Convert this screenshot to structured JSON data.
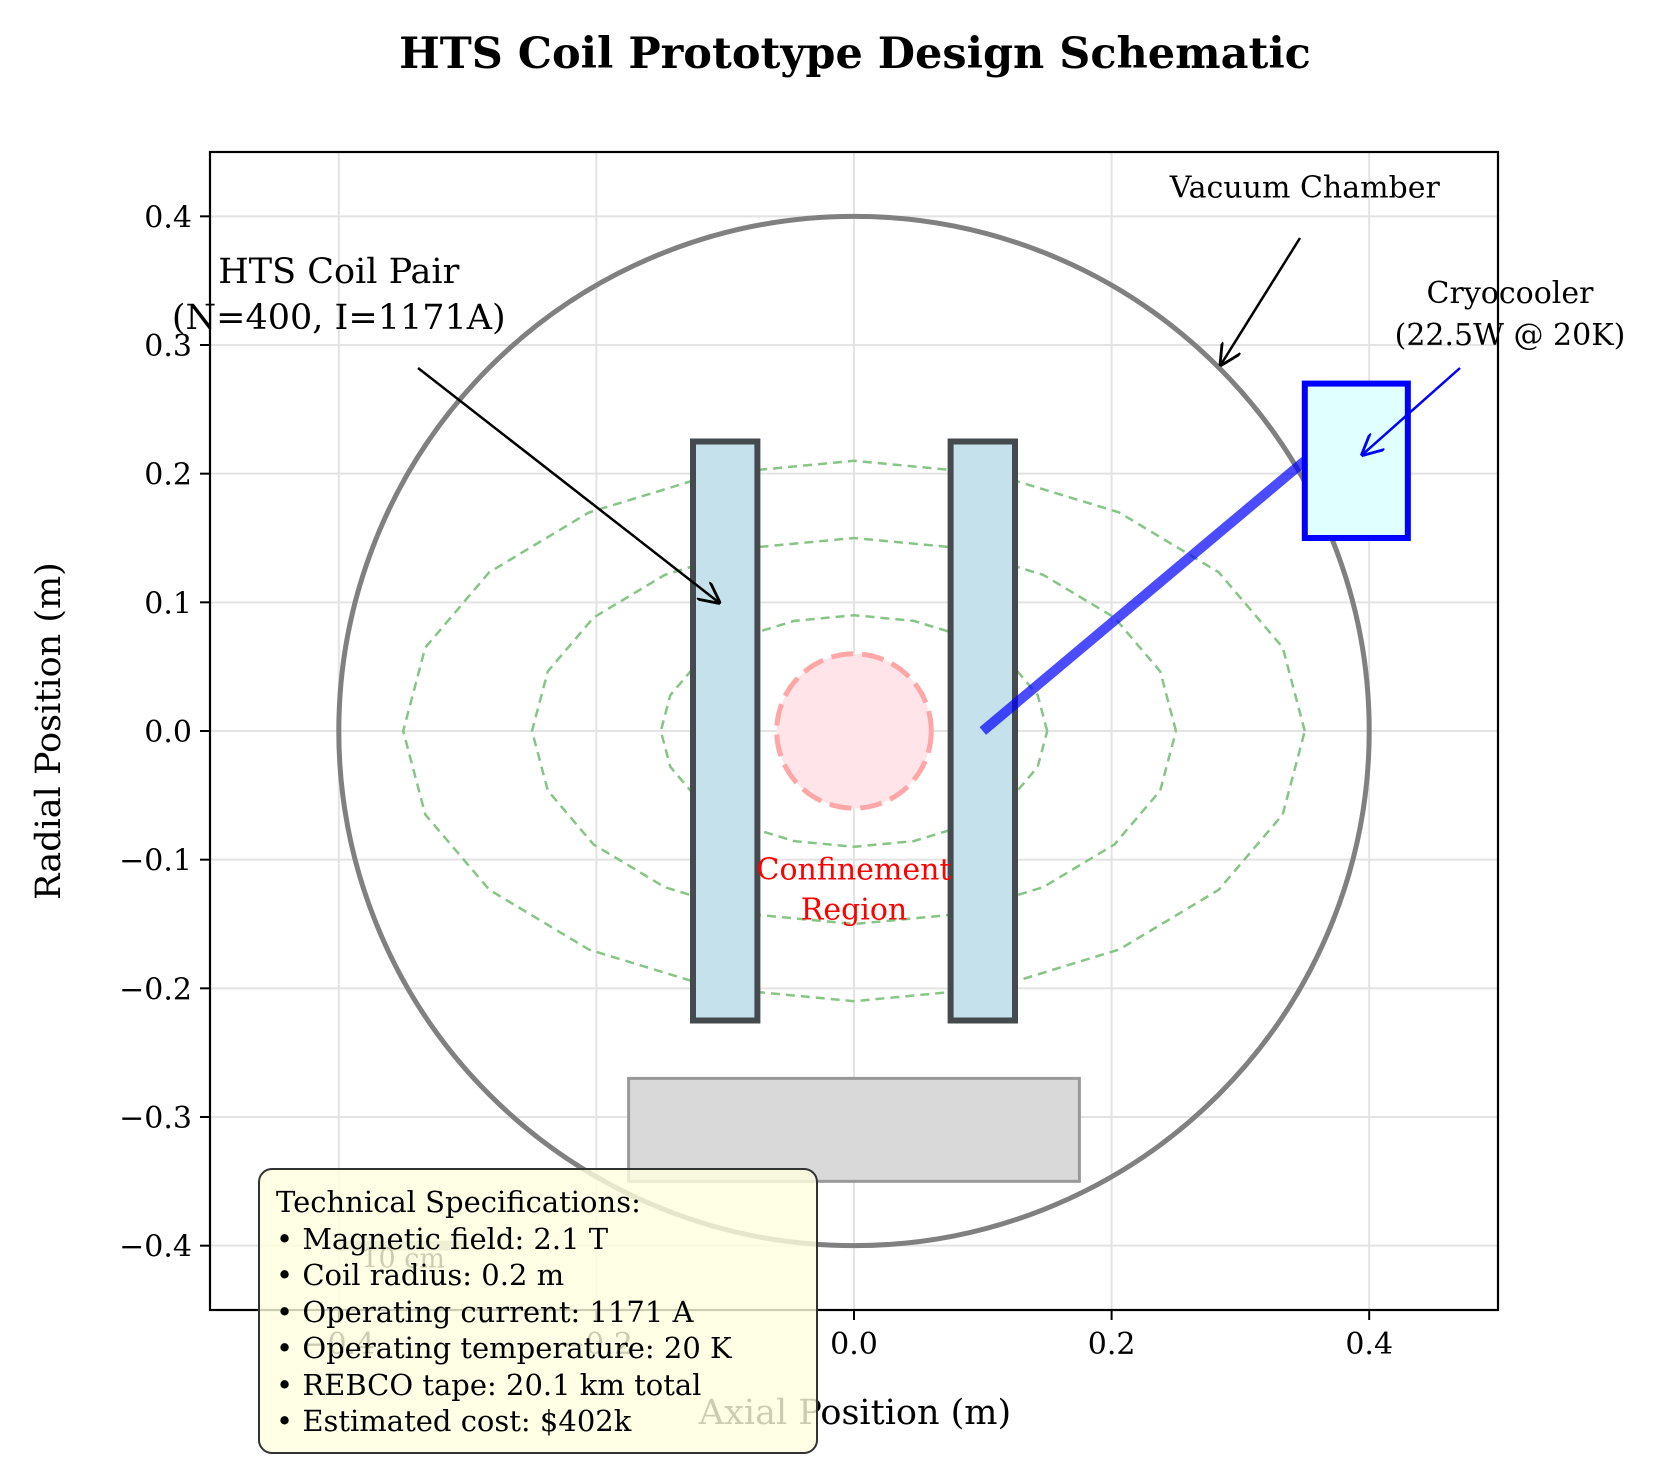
{
  "title": "HTS Coil Prototype Design Schematic",
  "axes": {
    "xlabel": "Axial Position (m)",
    "ylabel": "Radial Position (m)",
    "xlim": [
      -0.5,
      0.5
    ],
    "ylim": [
      -0.45,
      0.45
    ],
    "xticks": [
      -0.4,
      -0.2,
      0.0,
      0.2,
      0.4
    ],
    "xtick_labels": [
      "−0.4",
      "−0.2",
      "0.0",
      "0.2",
      "0.4"
    ],
    "yticks": [
      0.4,
      0.3,
      0.2,
      0.1,
      0.0,
      -0.1,
      -0.2,
      -0.3,
      -0.4
    ],
    "ytick_labels": [
      "0.4",
      "0.3",
      "0.2",
      "0.1",
      "0.0",
      "−0.1",
      "−0.2",
      "−0.3",
      "−0.4"
    ],
    "grid": true
  },
  "components": {
    "vacuum_chamber": {
      "center": [
        0,
        0
      ],
      "radius": 0.4,
      "color": "#808080"
    },
    "coils": [
      {
        "x_range": [
          -0.125,
          -0.075
        ],
        "y_range": [
          -0.225,
          0.225
        ],
        "fill": "#c5e2ec",
        "stroke": "#444a4d"
      },
      {
        "x_range": [
          0.075,
          0.125
        ],
        "y_range": [
          -0.225,
          0.225
        ],
        "fill": "#c5e2ec",
        "stroke": "#444a4d"
      }
    ],
    "confinement_region": {
      "center": [
        0,
        0
      ],
      "radius": 0.06,
      "fill": "#ffe4ea",
      "stroke": "#ffa6a6"
    },
    "field_lines": [
      {
        "rx": 0.15,
        "ry": 0.09
      },
      {
        "rx": 0.25,
        "ry": 0.15
      },
      {
        "rx": 0.35,
        "ry": 0.21
      }
    ],
    "field_line_color": "#86c586",
    "cryocooler": {
      "x_range": [
        0.35,
        0.43
      ],
      "y_range": [
        0.15,
        0.27
      ],
      "fill": "#e0ffff",
      "stroke": "#0000ff"
    },
    "cryo_line": {
      "from": [
        0.1,
        0.0
      ],
      "to": [
        0.35,
        0.21
      ],
      "color": "#0000ff"
    },
    "support_structure": {
      "x_range": [
        -0.175,
        0.175
      ],
      "y_range": [
        -0.35,
        -0.27
      ],
      "fill": "#d9d9d9",
      "stroke": "#999999"
    },
    "scale_bar": {
      "x_range": [
        -0.4,
        -0.3
      ],
      "y": -0.4,
      "label": "10 cm"
    }
  },
  "annotations": {
    "coil_pair": {
      "line1": "HTS Coil Pair",
      "line2": "(N=400, I=1171A)",
      "text_at": [
        -0.4,
        0.3
      ],
      "arrow_to": [
        -0.105,
        0.1
      ]
    },
    "vacuum_chamber": {
      "text": "Vacuum Chamber",
      "text_at": [
        0.35,
        0.41
      ],
      "arrow_to": [
        0.285,
        0.285
      ]
    },
    "cryocooler": {
      "line1": "Cryocooler",
      "line2": "(22.5W @ 20K)",
      "text_at": [
        0.5,
        0.31
      ],
      "arrow_to": [
        0.395,
        0.215
      ]
    },
    "confinement": {
      "line1": "Confinement",
      "line2": "Region"
    }
  },
  "specs": {
    "heading": "Technical Specifications:",
    "items": [
      "• Magnetic field: 2.1 T",
      "• Coil radius: 0.2 m",
      "• Operating current: 1171 A",
      "• Operating temperature: 20 K",
      "• REBCO tape: 20.1 km total",
      "• Estimated cost: $402k"
    ]
  }
}
